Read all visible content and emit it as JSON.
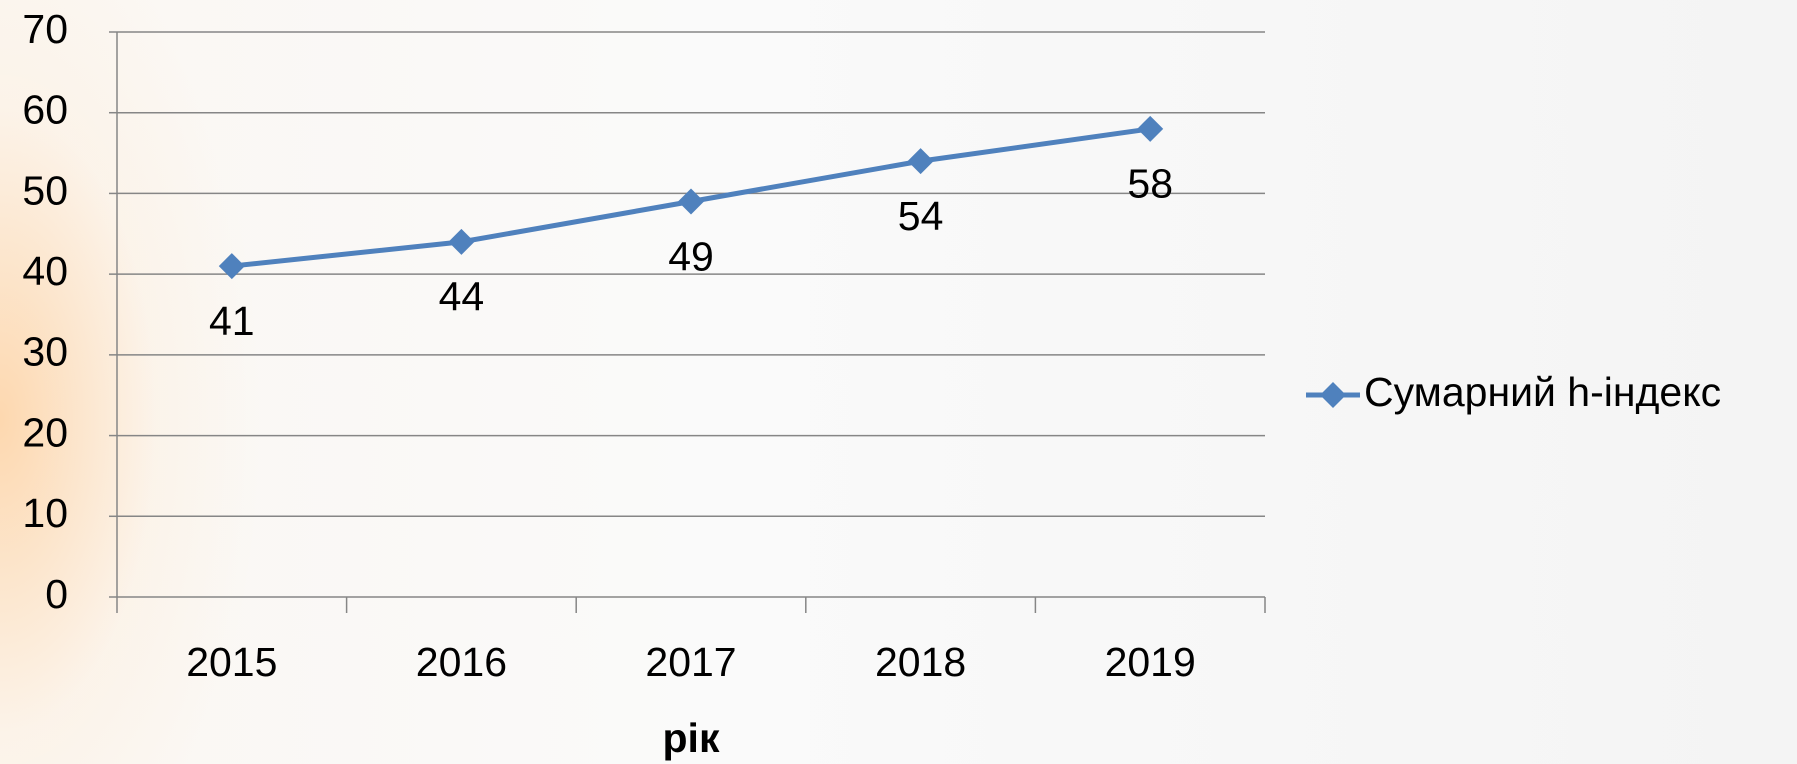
{
  "chart_data": {
    "type": "line",
    "categories": [
      "2015",
      "2016",
      "2017",
      "2018",
      "2019"
    ],
    "series": [
      {
        "name": "Сумарний h-індекс",
        "color": "#4f81bd",
        "values": [
          41,
          44,
          49,
          54,
          58
        ]
      }
    ],
    "xlabel": "рік",
    "ylim": [
      0,
      70
    ],
    "yticks": [
      0,
      10,
      20,
      30,
      40,
      50,
      60,
      70
    ],
    "grid": true,
    "legend": "right"
  }
}
